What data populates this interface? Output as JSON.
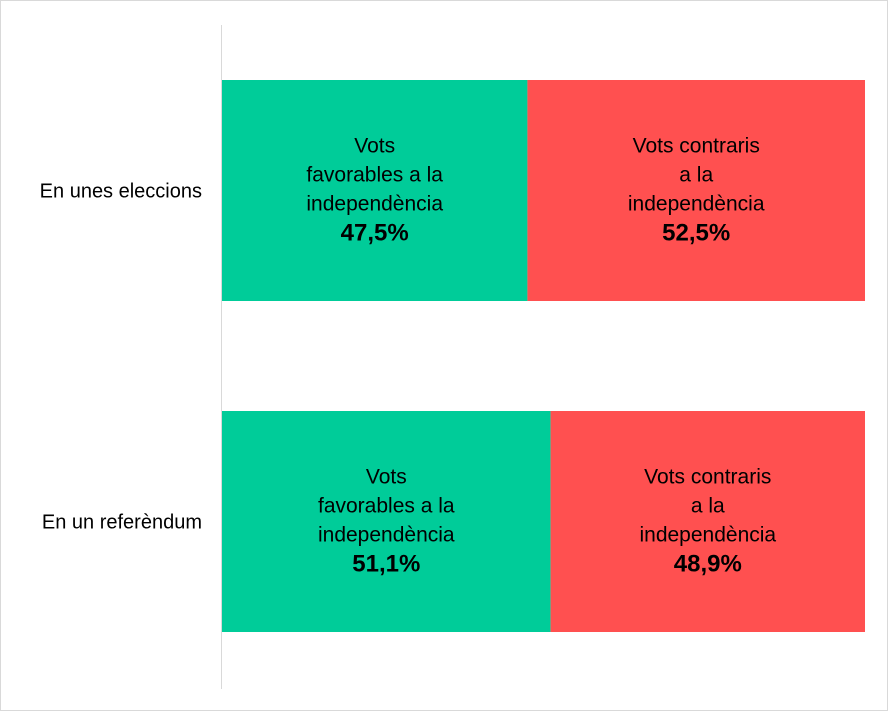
{
  "chart_data": {
    "type": "bar",
    "orientation": "horizontal",
    "stacked": "100%",
    "categories": [
      "En unes eleccions",
      "En un referèndum"
    ],
    "series": [
      {
        "label_lines": [
          "Vots",
          "favorables a la",
          "independència"
        ],
        "color": "#00cc99",
        "values": [
          47.5,
          51.1
        ],
        "value_labels": [
          "47,5%",
          "51,1%"
        ]
      },
      {
        "label_lines": [
          "Vots contraris",
          "a la",
          "independència"
        ],
        "color": "#ff5050",
        "values": [
          52.5,
          48.9
        ],
        "value_labels": [
          "52,5%",
          "48,9%"
        ]
      }
    ],
    "xlim": [
      0,
      100
    ],
    "grid": false,
    "legend": "none"
  }
}
